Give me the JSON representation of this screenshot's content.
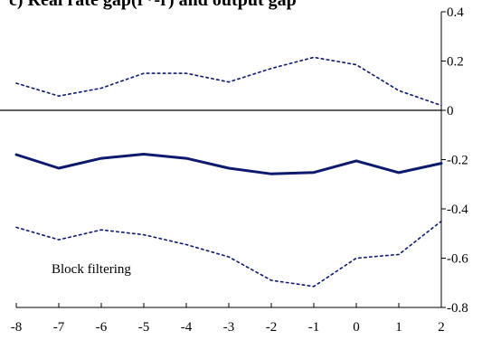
{
  "chart_data": {
    "type": "line",
    "title": "c) Real rate gap(r*-r) and output gap",
    "xlabel": "",
    "ylabel": "",
    "x": [
      -8,
      -7,
      -6,
      -5,
      -4,
      -3,
      -2,
      -1,
      0,
      1,
      2
    ],
    "xlim": [
      -8,
      2
    ],
    "ylim": [
      -0.8,
      0.4
    ],
    "x_ticks": [
      "-8",
      "-7",
      "-6",
      "-5",
      "-4",
      "-3",
      "-2",
      "-1",
      "0",
      "1",
      "2"
    ],
    "y_ticks": [
      "0.4",
      "0.2",
      "0",
      "-0.2",
      "-0.4",
      "-0.6",
      "-0.8"
    ],
    "y_axis_side": "right",
    "zero_line": true,
    "grid": false,
    "legend": "none",
    "annotation": "Block filtering",
    "series": [
      {
        "style": "solid",
        "color": "#0d1a6e",
        "values": [
          -0.18,
          -0.235,
          -0.195,
          -0.178,
          -0.195,
          -0.235,
          -0.258,
          -0.252,
          -0.205,
          -0.253,
          -0.215
        ]
      },
      {
        "style": "dotted",
        "color": "#0d1a6e",
        "values": [
          0.11,
          0.058,
          0.09,
          0.15,
          0.15,
          0.115,
          0.17,
          0.215,
          0.185,
          0.08,
          0.02
        ]
      },
      {
        "style": "dotted",
        "color": "#0d1a6e",
        "values": [
          -0.475,
          -0.525,
          -0.485,
          -0.505,
          -0.545,
          -0.595,
          -0.69,
          -0.715,
          -0.6,
          -0.585,
          -0.45
        ]
      }
    ]
  }
}
